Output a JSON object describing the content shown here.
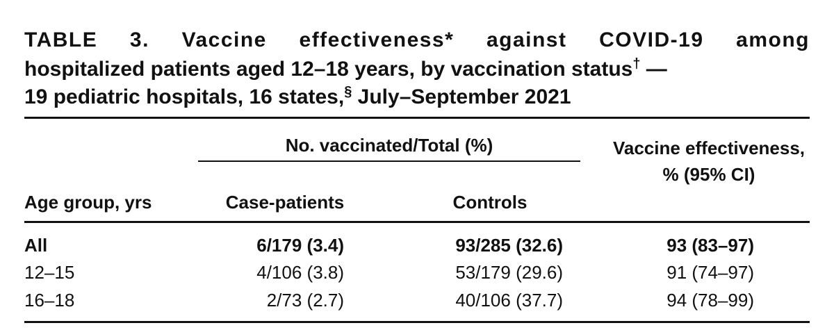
{
  "title": {
    "line1": "TABLE 3. Vaccine effectiveness* against COVID-19 among",
    "line2": "hospitalized patients aged 12–18 years, by vaccination status",
    "line2_mark": "†",
    "line2_end": " —",
    "line3": "19 pediatric hospitals, 16 states,",
    "line3_mark": "§",
    "line3_end": " July–September 2021"
  },
  "header": {
    "spanner": "No. vaccinated/Total (%)",
    "columns": [
      "Age group, yrs",
      "Case-patients",
      "Controls",
      "Vaccine effectiveness, % (95% CI)"
    ]
  },
  "table": {
    "rows": [
      [
        "All",
        "6/179 (3.4)",
        "93/285 (32.6)",
        "93 (83–97)"
      ],
      [
        "12–15",
        "4/106 (3.8)",
        "53/179 (29.6)",
        "91 (74–97)"
      ],
      [
        "16–18",
        "2/73 (2.7)",
        "40/106 (37.7)",
        "94 (78–99)"
      ]
    ]
  }
}
